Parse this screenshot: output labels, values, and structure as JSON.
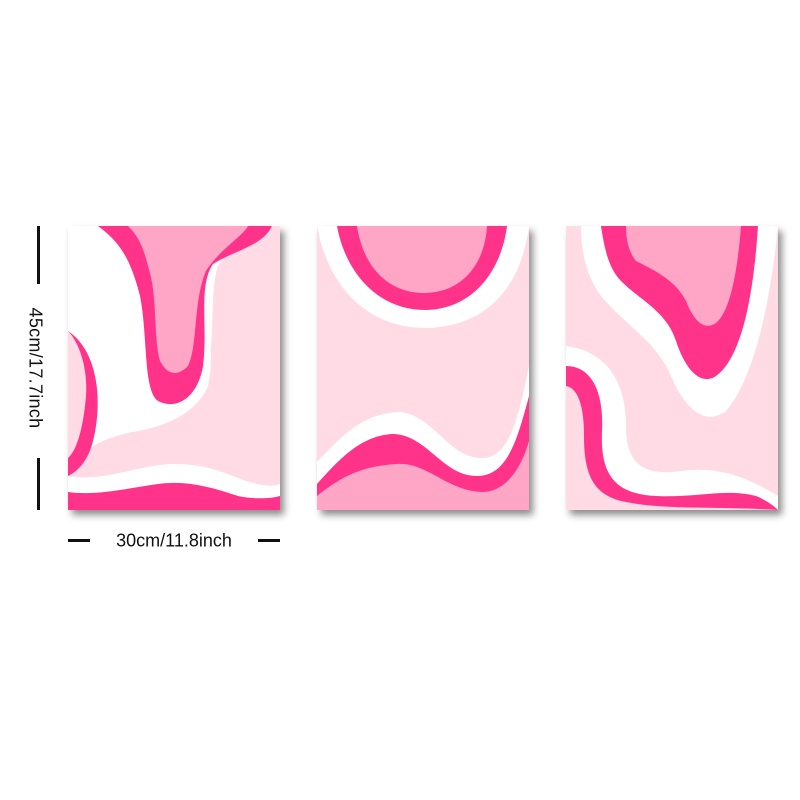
{
  "product": {
    "height_label": "45cm/17.7inch",
    "width_label": "30cm/11.8inch",
    "panels": [
      {
        "name": "panel-1"
      },
      {
        "name": "panel-2"
      },
      {
        "name": "panel-3"
      }
    ]
  },
  "colors": {
    "background": "#ffffff",
    "pale_pink": "#ffdbe6",
    "light_pink": "#ffa6c6",
    "hot_pink": "#ff3389",
    "white": "#ffffff",
    "dimension_line": "#111111"
  }
}
